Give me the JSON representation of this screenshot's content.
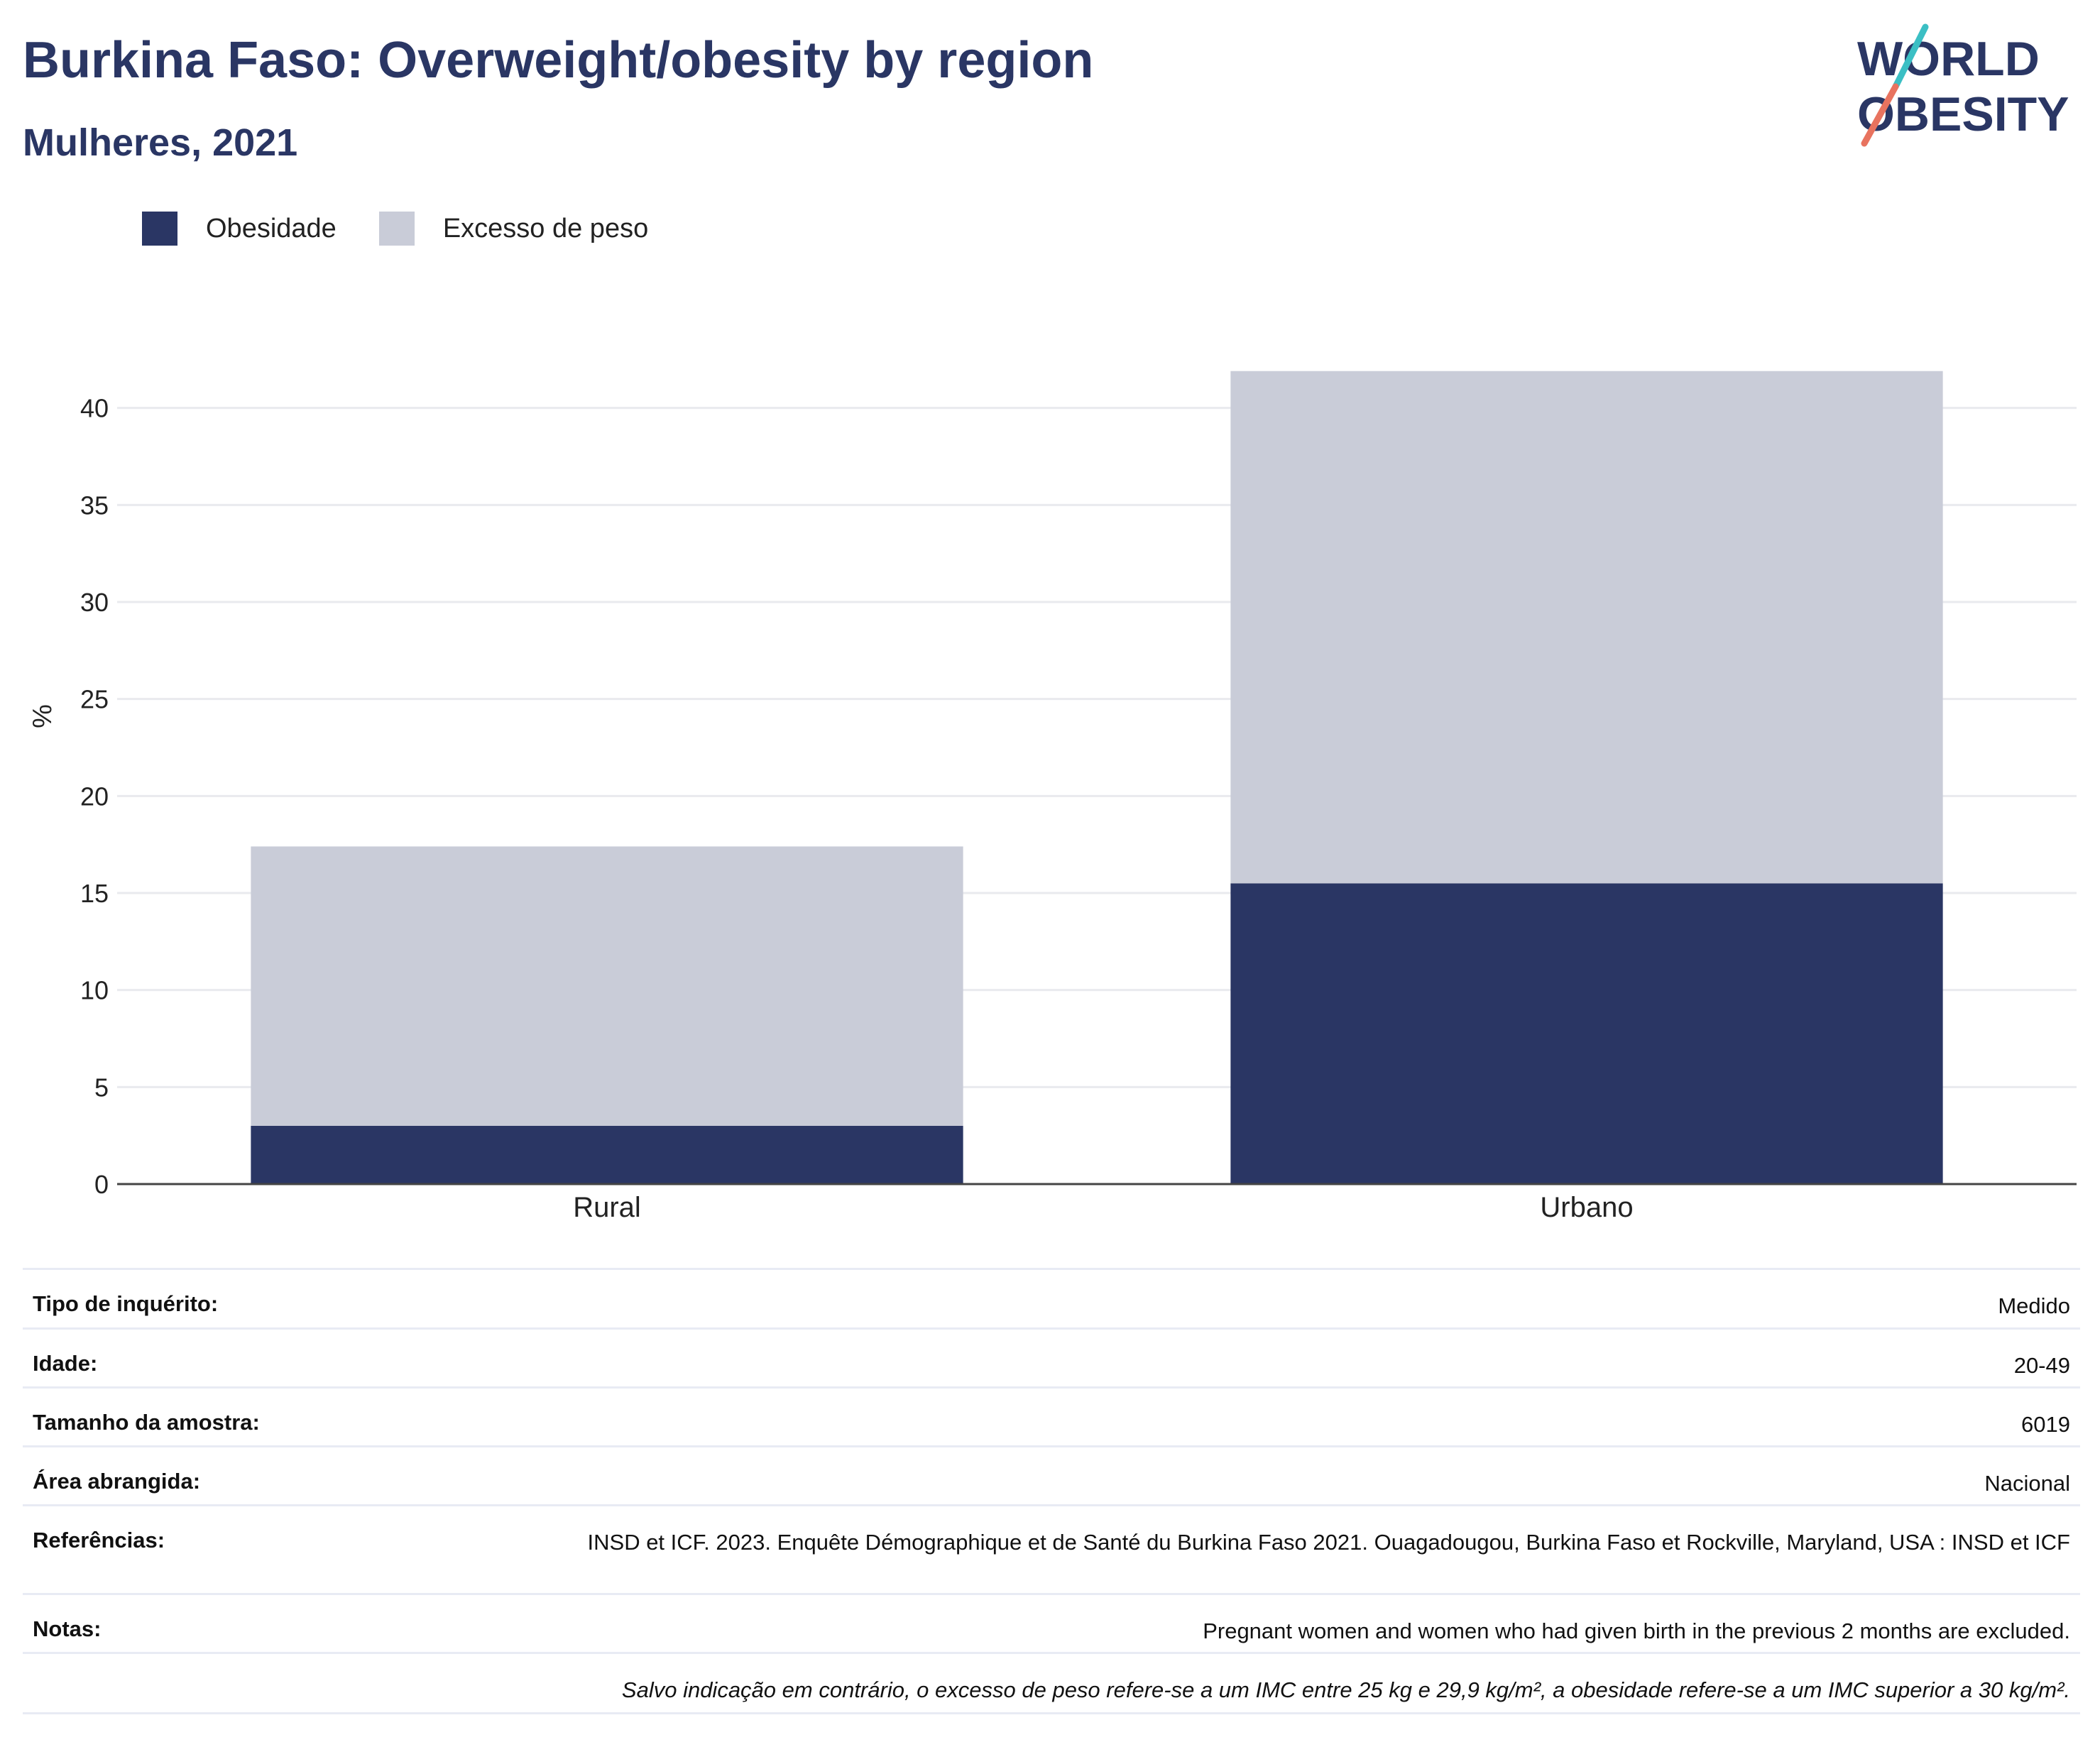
{
  "header": {
    "title": "Burkina Faso: Overweight/obesity by region",
    "subtitle": "Mulheres, 2021"
  },
  "logo": {
    "line1": "WORLD",
    "line2": "OBESITY"
  },
  "colors": {
    "obesity": "#2a3664",
    "overweight": "#c9ccd8",
    "text_primary": "#2a3664",
    "logo_teal": "#3bbfc4",
    "logo_coral": "#e8735f"
  },
  "legend": {
    "items": [
      {
        "label": "Obesidade",
        "color": "#2a3664"
      },
      {
        "label": "Excesso de peso",
        "color": "#c9ccd8"
      }
    ]
  },
  "chart_data": {
    "type": "bar",
    "stacked": true,
    "categories": [
      "Rural",
      "Urbano"
    ],
    "series": [
      {
        "name": "Obesidade",
        "values": [
          3.0,
          15.5
        ]
      },
      {
        "name": "Excesso de peso",
        "values": [
          14.4,
          26.4
        ]
      }
    ],
    "ylabel": "%",
    "ylim": [
      0,
      42
    ],
    "yticks": [
      0,
      5,
      10,
      15,
      20,
      25,
      30,
      35,
      40
    ],
    "grid": true,
    "legend_position": "top-left"
  },
  "info": {
    "rows": [
      {
        "label": "Tipo de inquérito:",
        "value": "Medido"
      },
      {
        "label": "Idade:",
        "value": "20-49"
      },
      {
        "label": "Tamanho da amostra:",
        "value": "6019"
      },
      {
        "label": "Área abrangida:",
        "value": "Nacional"
      },
      {
        "label": "Referências:",
        "value": "INSD et ICF. 2023. Enquête Démographique et de Santé du Burkina Faso 2021. Ouagadougou, Burkina Faso et Rockville, Maryland, USA : INSD et ICF"
      },
      {
        "label": "Notas:",
        "value": "Pregnant women and women who had given birth in the previous 2 months are excluded."
      }
    ],
    "footnote": "Salvo indicação em contrário, o excesso de peso refere-se a um IMC entre 25 kg e 29,9 kg/m², a obesidade refere-se a um IMC superior a 30 kg/m²."
  }
}
